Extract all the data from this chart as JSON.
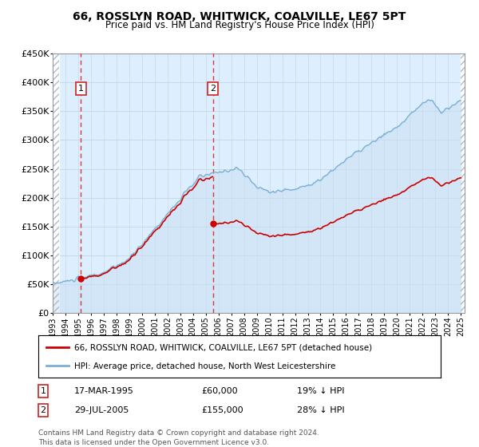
{
  "title": "66, ROSSLYN ROAD, WHITWICK, COALVILLE, LE67 5PT",
  "subtitle": "Price paid vs. HM Land Registry's House Price Index (HPI)",
  "legend_line1": "66, ROSSLYN ROAD, WHITWICK, COALVILLE, LE67 5PT (detached house)",
  "legend_line2": "HPI: Average price, detached house, North West Leicestershire",
  "transaction1_date": "17-MAR-1995",
  "transaction1_price": 60000,
  "transaction2_date": "29-JUL-2005",
  "transaction2_price": 155000,
  "transaction1_info": "19% ↓ HPI",
  "transaction2_info": "28% ↓ HPI",
  "footnote1": "Contains HM Land Registry data © Crown copyright and database right 2024.",
  "footnote2": "This data is licensed under the Open Government Licence v3.0.",
  "xmin": 1993.0,
  "xmax": 2025.3,
  "ymin": 0,
  "ymax": 450000,
  "transaction1_x": 1995.21,
  "transaction2_x": 2005.57,
  "property_color": "#cc0000",
  "hpi_color": "#7ab0d4",
  "hpi_fill_color": "#c8dff0",
  "grid_color": "#c8d8e8",
  "background_color": "#ddeeff",
  "hatch_color": "#aabbcc"
}
